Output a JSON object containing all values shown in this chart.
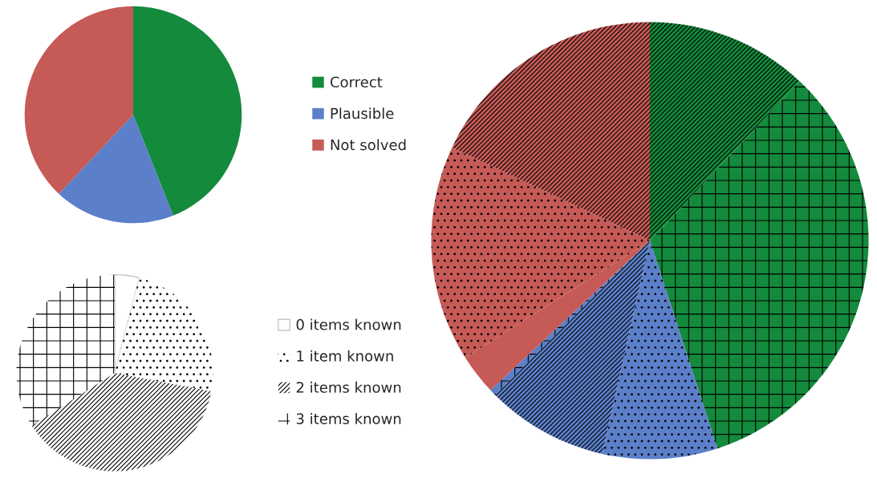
{
  "chart_data": [
    {
      "type": "pie",
      "categories": [
        "Correct",
        "Plausible",
        "Not solved"
      ],
      "values": [
        44,
        18,
        38
      ],
      "colors": [
        "#138a3c",
        "#5b7fc9",
        "#c65a57"
      ],
      "legend": "right"
    },
    {
      "type": "pie",
      "categories": [
        "0 items known",
        "1 item known",
        "2 items known",
        "3 items known"
      ],
      "values": [
        4,
        24,
        38,
        34
      ],
      "colors": [
        "#ffffff",
        "#ffffff",
        "#ffffff",
        "#ffffff"
      ],
      "legend": "right"
    },
    {
      "type": "pie",
      "categories": [
        null,
        null,
        null,
        null,
        null,
        null,
        null,
        null
      ],
      "values": [
        12,
        33,
        8.5,
        9,
        0.5,
        3,
        16,
        18
      ],
      "colors": [
        "#138a3c",
        "#138a3c",
        "#5b7fc9",
        "#5b7fc9",
        "#5b7fc9",
        "#c65a57",
        "#c65a57",
        "#c65a57"
      ]
    }
  ]
}
